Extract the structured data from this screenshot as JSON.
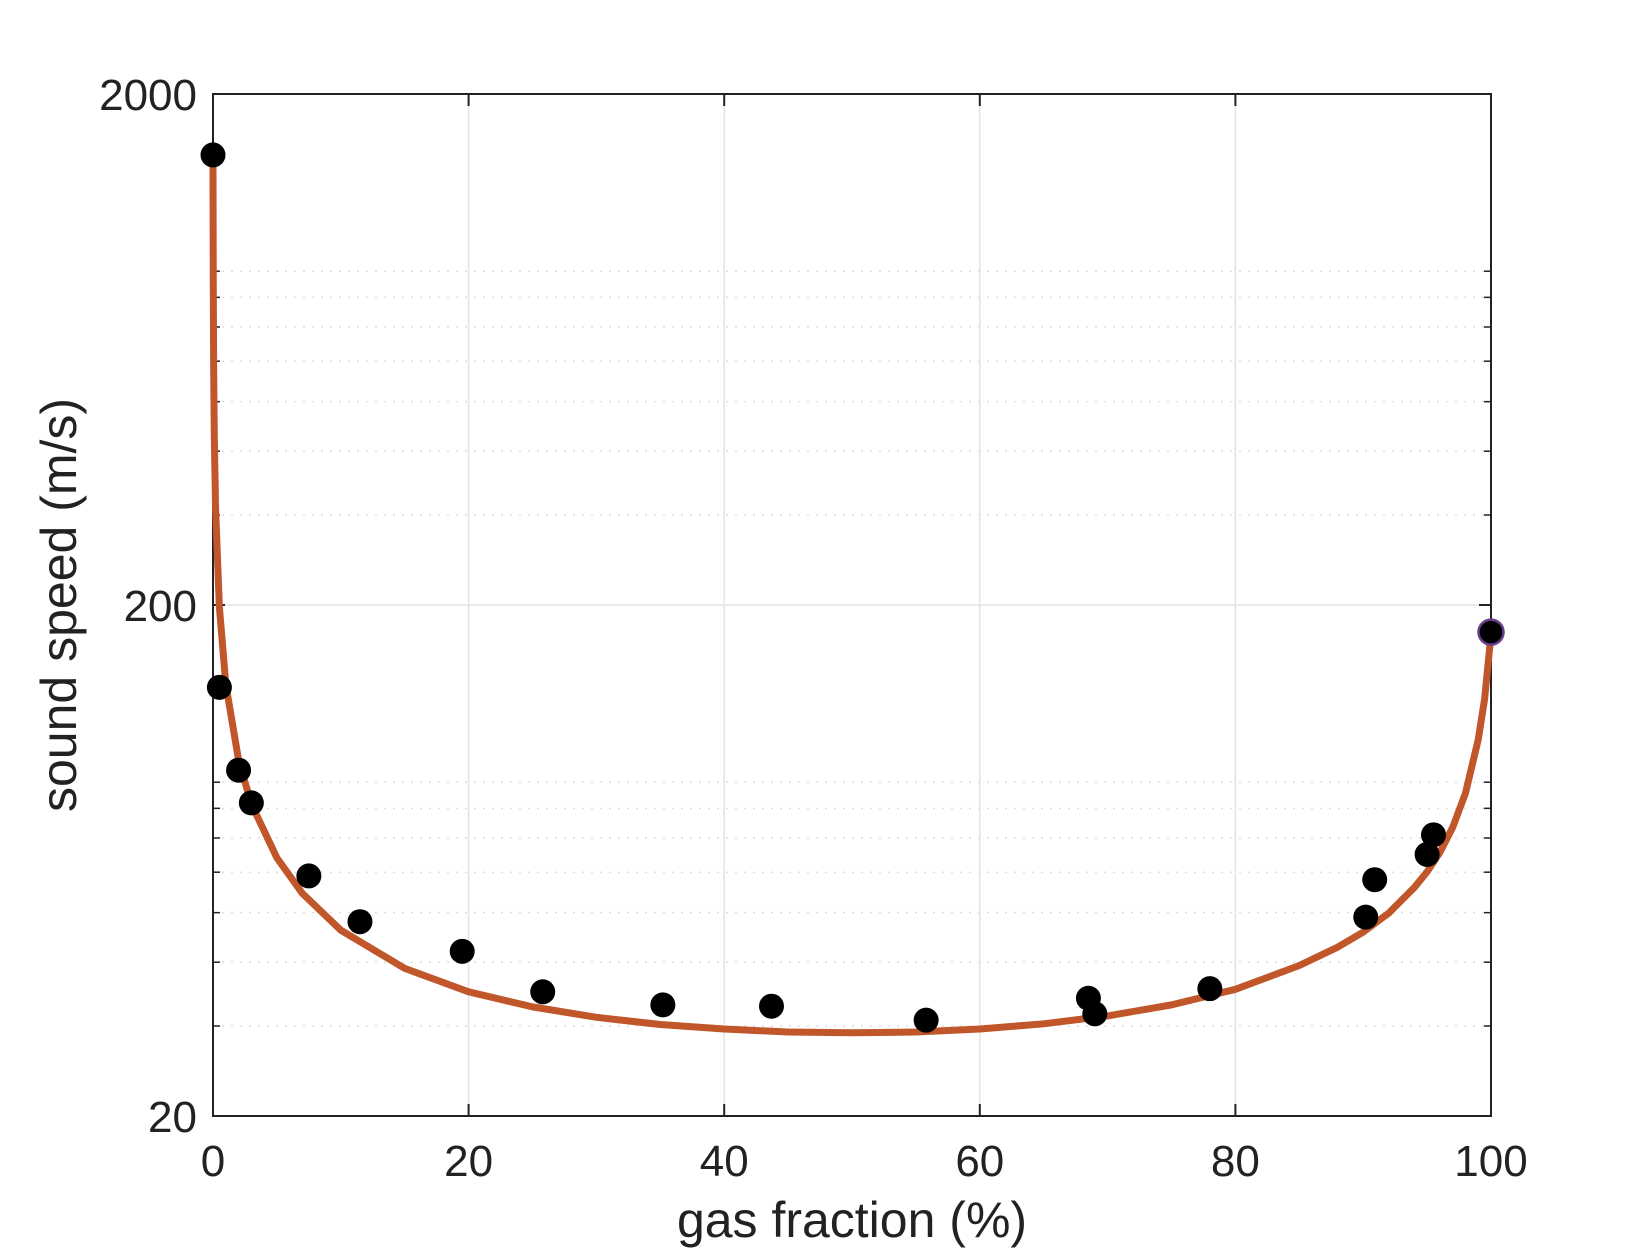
{
  "chart_data": {
    "type": "scatter",
    "xlabel": "gas fraction (%)",
    "ylabel": "sound speed (m/s)",
    "xlim": [
      0,
      100
    ],
    "ylim": [
      20,
      2000
    ],
    "yscale": "log",
    "xticks": [
      "0",
      "20",
      "40",
      "60",
      "80",
      "100"
    ],
    "yticks": [
      "20",
      "200",
      "2000"
    ],
    "grid": true,
    "colors": {
      "curve": "#c0562a",
      "points": "#000000",
      "last_point_edge": "#6a3d8f",
      "axis": "#222222",
      "grid_major": "#e3e3e3",
      "grid_minor": "#dddddd"
    },
    "series": [
      {
        "type": "scatter",
        "points": [
          [
            0.0,
            1520
          ],
          [
            0.5,
            138
          ],
          [
            2.0,
            95
          ],
          [
            3.0,
            82
          ],
          [
            7.5,
            59
          ],
          [
            11.5,
            48
          ],
          [
            19.5,
            42
          ],
          [
            25.8,
            35
          ],
          [
            35.2,
            33
          ],
          [
            43.7,
            32.8
          ],
          [
            55.8,
            30.8
          ],
          [
            68.5,
            34
          ],
          [
            69.0,
            31.7
          ],
          [
            78.0,
            35.5
          ],
          [
            90.2,
            49
          ],
          [
            90.9,
            58
          ],
          [
            95.0,
            65
          ],
          [
            95.5,
            71
          ],
          [
            100.0,
            177
          ]
        ]
      },
      {
        "type": "line",
        "points": [
          [
            0,
            1480
          ],
          [
            0.01,
            1100
          ],
          [
            0.02,
            850
          ],
          [
            0.05,
            590
          ],
          [
            0.1,
            430
          ],
          [
            0.2,
            310
          ],
          [
            0.5,
            198
          ],
          [
            1,
            140
          ],
          [
            2,
            99.5
          ],
          [
            3,
            81.6
          ],
          [
            5,
            64
          ],
          [
            7,
            54.5
          ],
          [
            10,
            46.2
          ],
          [
            15,
            38.9
          ],
          [
            20,
            35
          ],
          [
            25,
            32.7
          ],
          [
            30,
            31.2
          ],
          [
            35,
            30.2
          ],
          [
            40,
            29.6
          ],
          [
            45,
            29.2
          ],
          [
            50,
            29.1
          ],
          [
            55,
            29.2
          ],
          [
            60,
            29.6
          ],
          [
            65,
            30.3
          ],
          [
            70,
            31.4
          ],
          [
            75,
            33
          ],
          [
            80,
            35.4
          ],
          [
            85,
            39.4
          ],
          [
            88,
            42.8
          ],
          [
            90,
            45.8
          ],
          [
            92,
            49.9
          ],
          [
            94,
            56
          ],
          [
            95,
            60.1
          ],
          [
            96,
            65.6
          ],
          [
            97,
            73.4
          ],
          [
            98,
            85.6
          ],
          [
            99,
            109
          ],
          [
            99.5,
            131
          ],
          [
            100,
            175
          ]
        ]
      }
    ]
  }
}
